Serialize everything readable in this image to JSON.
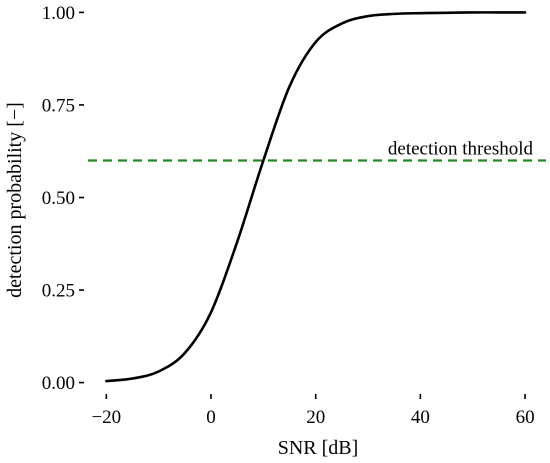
{
  "chart_data": {
    "type": "line",
    "xlabel": "SNR [dB]",
    "ylabel": "detection probability [−]",
    "xlim": [
      -23.5,
      64
    ],
    "ylim": [
      -0.02,
      1.02
    ],
    "x_ticks": [
      -20,
      0,
      20,
      40,
      60
    ],
    "x_tick_labels": [
      "−20",
      "0",
      "20",
      "40",
      "60"
    ],
    "y_ticks": [
      0.0,
      0.25,
      0.5,
      0.75,
      1.0
    ],
    "y_tick_labels": [
      "0.00",
      "0.25",
      "0.50",
      "0.75",
      "1.00"
    ],
    "grid": false,
    "series": [
      {
        "style": "solid",
        "color": "#000000",
        "x": [
          -20,
          -15,
          -10,
          -5,
          0,
          5,
          10,
          15,
          20,
          25,
          30,
          35,
          40,
          45,
          50,
          55,
          60
        ],
        "y": [
          0.004,
          0.011,
          0.03,
          0.08,
          0.19,
          0.38,
          0.6,
          0.8,
          0.92,
          0.97,
          0.99,
          0.996,
          0.998,
          0.999,
          1.0,
          1.0,
          1.0
        ]
      }
    ],
    "reference_lines": [
      {
        "orientation": "horizontal",
        "y": 0.6,
        "style": "dashed",
        "color": "#228B22",
        "label": "detection threshold"
      }
    ]
  }
}
